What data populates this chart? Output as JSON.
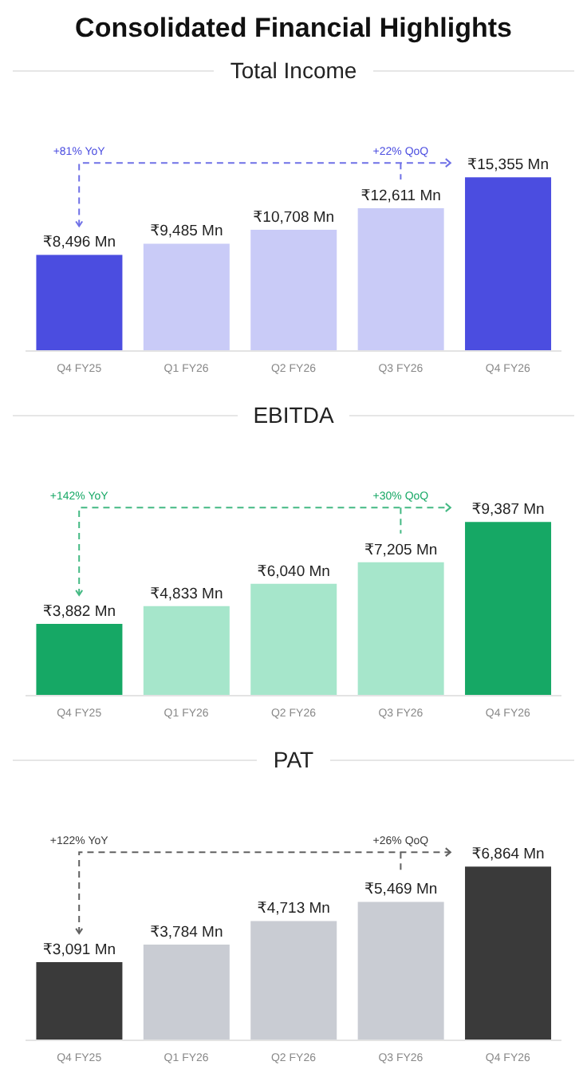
{
  "chart_data": [
    {
      "type": "bar",
      "title": "Consolidated Financial Highlights",
      "subtitle": "Total Income",
      "categories": [
        "Q4 FY25",
        "Q1 FY26",
        "Q2 FY26",
        "Q3 FY26",
        "Q4 FY26"
      ],
      "values": [
        8496,
        9485,
        10708,
        12611,
        15355
      ],
      "colors": [
        "#4b4de0",
        "#c9cbf7",
        "#c9cbf7",
        "#c9cbf7",
        "#4b4de0"
      ],
      "value_labels": [
        "₹8,496 Mn",
        "₹9,485 Mn",
        "₹10,708 Mn",
        "₹12,611 Mn",
        "₹15,355 Mn"
      ],
      "annotations": [
        "+81% YoY",
        "+22% QoQ"
      ]
    },
    {
      "type": "bar",
      "title": "EBITDA",
      "categories": [
        "Q4 FY25",
        "Q1 FY26",
        "Q2 FY26",
        "Q3 FY26",
        "Q4 FY26"
      ],
      "values": [
        3882,
        4833,
        6040,
        7205,
        9387
      ],
      "colors": [
        "#16a865",
        "#a6e6cb",
        "#a6e6cb",
        "#a6e6cb",
        "#16a865"
      ],
      "value_labels": [
        "₹3,882 Mn",
        "₹4,833 Mn",
        "₹6,040 Mn",
        "₹7,205 Mn",
        "₹9,387 Mn"
      ],
      "annotations": [
        "+142% YoY",
        "+30% QoQ"
      ]
    },
    {
      "type": "bar",
      "title": "PAT",
      "categories": [
        "Q4 FY25",
        "Q1 FY26",
        "Q2 FY26",
        "Q3 FY26",
        "Q4 FY26"
      ],
      "values": [
        3091,
        3784,
        4713,
        5469,
        6864
      ],
      "colors": [
        "#3a3a3a",
        "#c9ccd3",
        "#c9ccd3",
        "#c9ccd3",
        "#3a3a3a"
      ],
      "value_labels": [
        "₹3,091 Mn",
        "₹3,784 Mn",
        "₹4,713 Mn",
        "₹5,469 Mn",
        "₹6,864 Mn"
      ],
      "annotations": [
        "+122% YoY",
        "+26% QoQ"
      ]
    }
  ]
}
